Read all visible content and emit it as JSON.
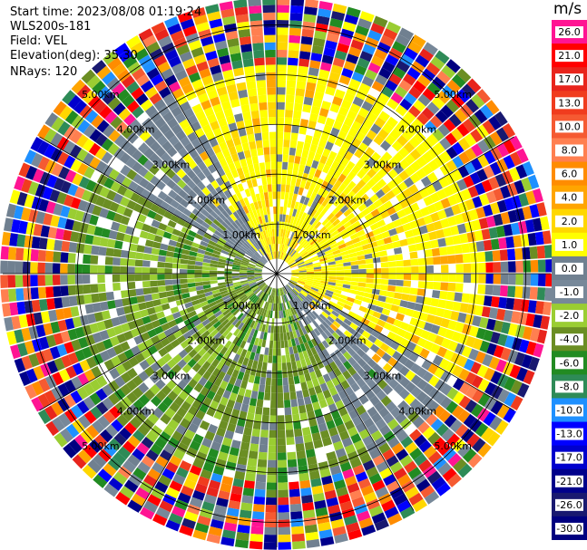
{
  "header": {
    "start_time": "Start time: 2023/08/08 01:19:24",
    "instrument": "WLS200s-181",
    "field": "Field: VEL",
    "elevation": "Elevation(deg): 35.30",
    "nrays": "NRays: 120"
  },
  "chart_data": {
    "type": "heatmap",
    "projection": "polar (PPI scan)",
    "field": "VEL",
    "units": "m/s",
    "elevation_deg": 35.3,
    "n_rays": 120,
    "max_range_km": 5.5,
    "range_rings_km": [
      1,
      2,
      3,
      4,
      5
    ],
    "ring_labels": [
      "1.00km",
      "2.00km",
      "3.00km",
      "4.00km",
      "5.00km"
    ],
    "azimuth_spokes_deg": [
      0,
      30,
      60,
      90,
      120,
      150,
      180,
      210,
      240,
      270,
      300,
      330
    ],
    "colorbar": {
      "vmin": -30.0,
      "vmax": 30.0,
      "tick_labels": [
        "26.0",
        "21.0",
        "17.0",
        "13.0",
        "10.0",
        "8.0",
        "6.0",
        "4.0",
        "2.0",
        "1.0",
        "0.0",
        "-1.0",
        "-2.0",
        "-4.0",
        "-6.0",
        "-8.0",
        "-10.0",
        "-13.0",
        "-17.0",
        "-21.0",
        "-26.0",
        "-30.0"
      ],
      "colors": [
        "#ff1493",
        "#ff0000",
        "#e8241c",
        "#f03c1e",
        "#f55a32",
        "#ff7f50",
        "#ff8c00",
        "#ffa500",
        "#ffd700",
        "#ffff00",
        "#708090",
        "#778899",
        "#9acd32",
        "#6b8e23",
        "#228b22",
        "#2e8b57",
        "#1e90ff",
        "#0000ff",
        "#0000cd",
        "#00008b",
        "#191970",
        "#000080"
      ]
    },
    "dominant_pattern": {
      "inner_2.5km_NE_sector": "positive 1.0–4.0 m/s (yellow)",
      "inner_2.5km_SW_sector": "negative -1.0 to -6.0 m/s (greens)",
      "near_zero_band": "0.0 m/s gray along NW–SE axis",
      "beyond_4km": "noisy, full colour range"
    }
  }
}
